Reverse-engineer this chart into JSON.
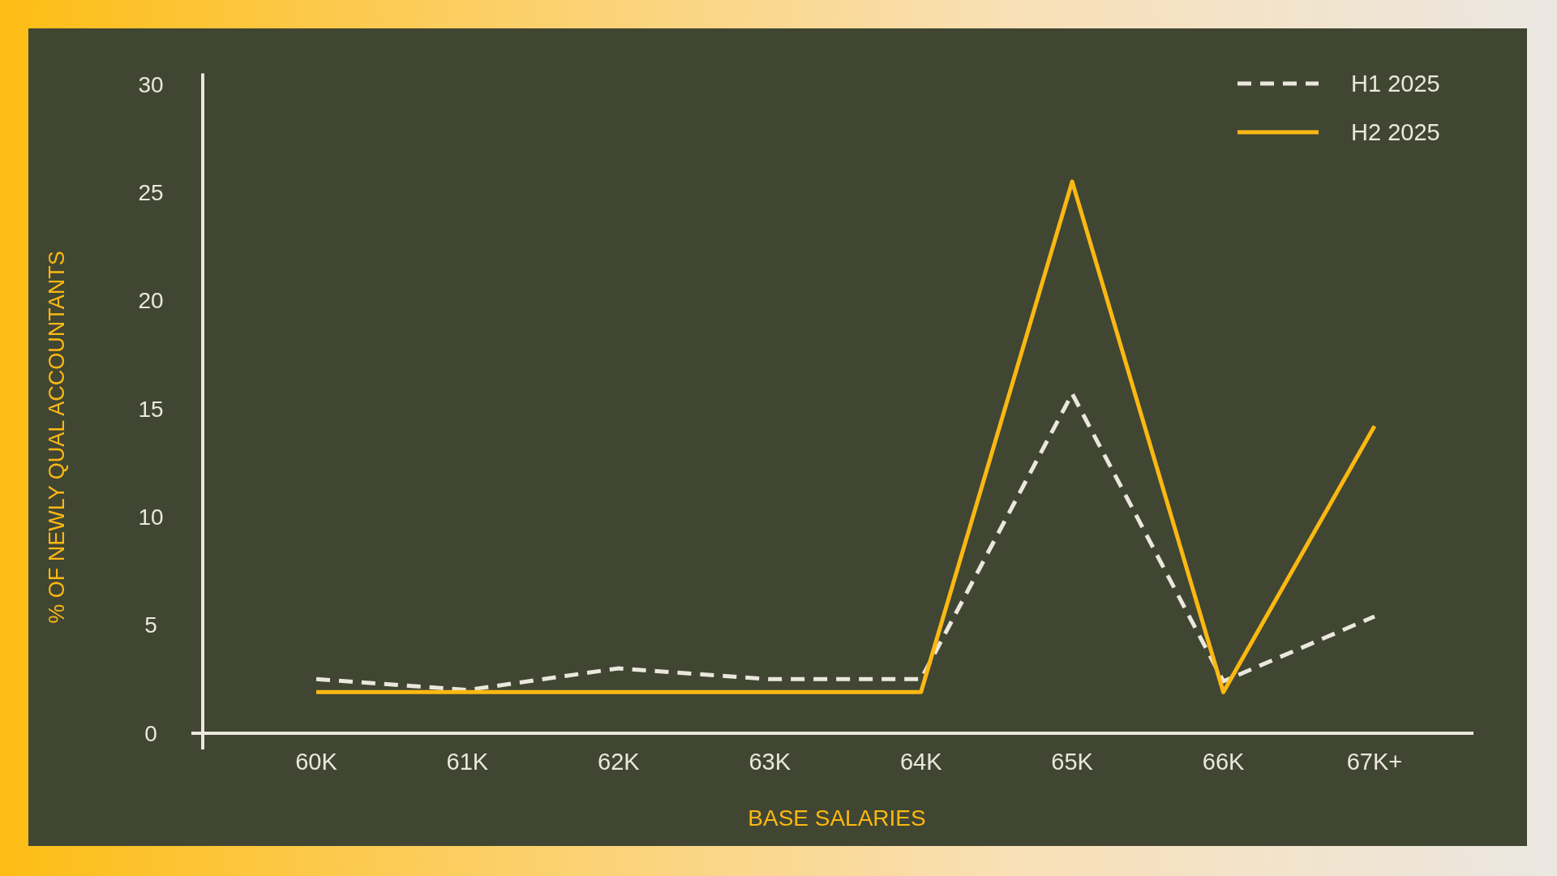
{
  "chart_data": {
    "type": "line",
    "xlabel": "BASE SALARIES",
    "ylabel": "% OF NEWLY QUAL ACCOUNTANTS",
    "categories": [
      "60K",
      "61K",
      "62K",
      "63K",
      "64K",
      "65K",
      "66K",
      "67K+"
    ],
    "series": [
      {
        "name": "H1 2025",
        "color": "#ebe7de",
        "line_style": "dashed",
        "values": [
          2.5,
          2,
          3,
          2.5,
          2.5,
          15.7,
          2.4,
          5.4
        ]
      },
      {
        "name": "H2 2025",
        "color": "#fbb812",
        "line_style": "solid",
        "values": [
          1.9,
          1.9,
          1.9,
          1.9,
          1.9,
          25.5,
          1.9,
          14.2
        ]
      }
    ],
    "ylim": [
      0,
      30.5
    ],
    "yticks": [
      0,
      5,
      10,
      15,
      20,
      25,
      30
    ],
    "legend": "top right"
  }
}
